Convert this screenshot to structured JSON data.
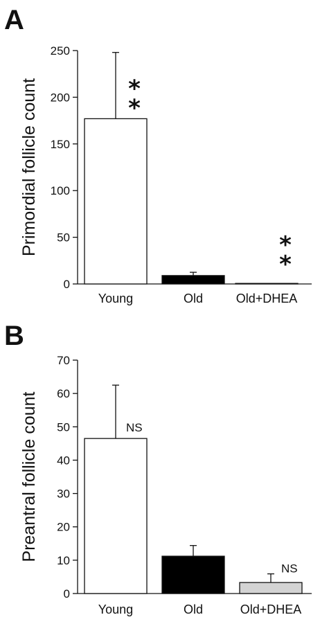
{
  "chart_data": [
    {
      "panel": "A",
      "type": "bar",
      "ylabel": "Primordial follicle count",
      "ylim": [
        0,
        250
      ],
      "yticks": [
        0,
        50,
        100,
        150,
        200,
        250
      ],
      "categories": [
        "Young",
        "Old",
        "Old+DHEA"
      ],
      "values": [
        177,
        9,
        0.5
      ],
      "errors": [
        71,
        3.5,
        0
      ],
      "colors": [
        "#ffffff",
        "#000000",
        "#d3d3d3"
      ],
      "annotations": [
        {
          "category": "Young",
          "text": "*\n*"
        },
        {
          "category": "Old+DHEA",
          "text": "*\n*"
        }
      ]
    },
    {
      "panel": "B",
      "type": "bar",
      "ylabel": "Preantral follicle count",
      "ylim": [
        0,
        70
      ],
      "yticks": [
        0,
        10,
        20,
        30,
        40,
        50,
        60,
        70
      ],
      "categories": [
        "Young",
        "Old",
        "Old+DHEA"
      ],
      "values": [
        46.5,
        11.2,
        3.3
      ],
      "errors": [
        16,
        3.2,
        2.6
      ],
      "colors": [
        "#ffffff",
        "#000000",
        "#d3d3d3"
      ],
      "annotations": [
        {
          "category": "Young",
          "text": "NS"
        },
        {
          "category": "Old+DHEA",
          "text": "NS"
        }
      ]
    }
  ]
}
